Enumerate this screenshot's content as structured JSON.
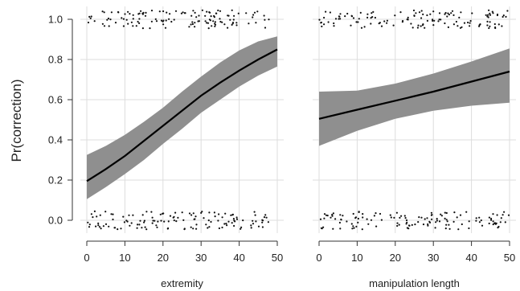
{
  "chart_data": {
    "type": "line",
    "ylabel": "Pr(correction)",
    "y_ticks": [
      "0.0",
      "0.2",
      "0.4",
      "0.6",
      "0.8",
      "1.0"
    ],
    "ylim": [
      -0.05,
      1.07
    ],
    "grid": true,
    "panels": [
      {
        "xlabel": "extremity",
        "xlim": [
          0,
          50
        ],
        "x_ticks": [
          "0",
          "10",
          "20",
          "30",
          "40",
          "50"
        ],
        "curve": {
          "x": [
            0,
            5,
            10,
            15,
            20,
            25,
            30,
            35,
            40,
            45,
            50
          ],
          "y": [
            0.195,
            0.255,
            0.32,
            0.395,
            0.47,
            0.545,
            0.62,
            0.685,
            0.745,
            0.8,
            0.85
          ]
        },
        "ci_lower": [
          0.105,
          0.165,
          0.23,
          0.3,
          0.38,
          0.455,
          0.535,
          0.6,
          0.665,
          0.72,
          0.765
        ],
        "ci_upper": [
          0.325,
          0.37,
          0.425,
          0.49,
          0.56,
          0.64,
          0.715,
          0.785,
          0.845,
          0.89,
          0.915
        ],
        "rug_x_range": [
          0,
          48
        ]
      },
      {
        "xlabel": "manipulation length",
        "xlim": [
          0,
          50
        ],
        "x_ticks": [
          "0",
          "10",
          "20",
          "30",
          "40",
          "50"
        ],
        "curve": {
          "x": [
            0,
            10,
            20,
            30,
            40,
            50
          ],
          "y": [
            0.505,
            0.55,
            0.595,
            0.64,
            0.69,
            0.74
          ]
        },
        "ci_lower": [
          0.37,
          0.445,
          0.505,
          0.545,
          0.57,
          0.585
        ],
        "ci_upper": [
          0.64,
          0.645,
          0.68,
          0.73,
          0.79,
          0.855
        ],
        "rug_x_range": [
          0,
          50
        ]
      }
    ]
  }
}
